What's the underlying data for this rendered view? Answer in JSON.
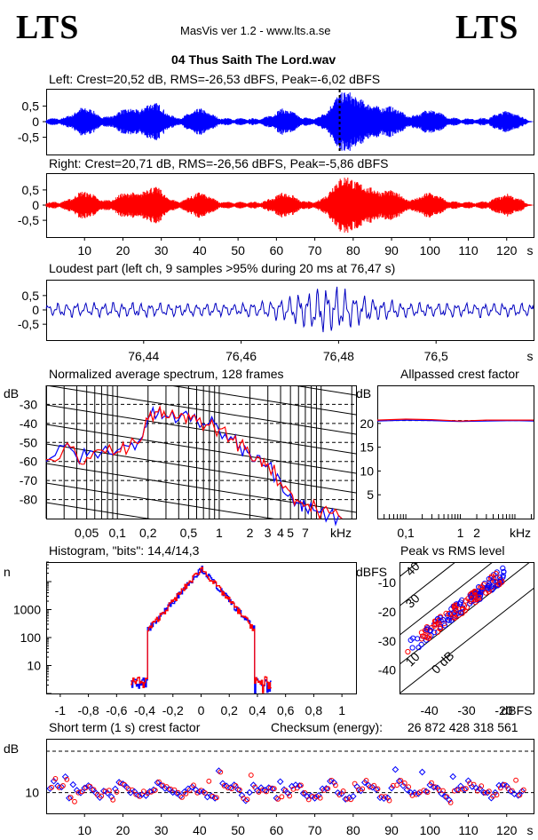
{
  "header": {
    "logo_left": "LTS",
    "logo_right": "LTS",
    "app_title": "MasVis ver 1.2 - www.lts.a.se",
    "file_name": "04 Thus Saith The Lord.wav"
  },
  "colors": {
    "left": "#0000ff",
    "right": "#ff0000",
    "axis": "#000000",
    "grid": "#000000"
  },
  "chart_data": [
    {
      "id": "left-waveform",
      "type": "line",
      "title": "Left: Crest=20,52 dB, RMS=-26,53 dBFS, Peak=-6,02 dBFS",
      "ylim": [
        -1,
        1
      ],
      "xlim": [
        0,
        127
      ],
      "yticks": [
        "0,5",
        "0",
        "-0,5"
      ],
      "marker_time_s": 76.47
    },
    {
      "id": "right-waveform",
      "type": "line",
      "title": "Right: Crest=20,71 dB, RMS=-26,56 dBFS, Peak=-5,86 dBFS",
      "ylim": [
        -1,
        1
      ],
      "xlim": [
        0,
        127
      ],
      "yticks": [
        "0,5",
        "0",
        "-0,5"
      ],
      "xticks": [
        10,
        20,
        30,
        40,
        50,
        60,
        70,
        80,
        90,
        100,
        110,
        120
      ],
      "xticklabels": [
        "10",
        "20",
        "30",
        "40",
        "50",
        "60",
        "70",
        "80",
        "90",
        "100",
        "110",
        "120"
      ],
      "xunit": "s"
    },
    {
      "id": "loudest-part",
      "type": "line",
      "title": "Loudest part (left  ch, 9 samples >95% during 20 ms at 76,47 s)",
      "ylim": [
        -1,
        1
      ],
      "xlim": [
        76.42,
        76.52
      ],
      "yticks": [
        "0,5",
        "0",
        "-0,5"
      ],
      "xticks": [
        76.44,
        76.46,
        76.48,
        76.5
      ],
      "xticklabels": [
        "76,44",
        "76,46",
        "76,48",
        "76,5"
      ],
      "xunit": "s"
    },
    {
      "id": "spectrum",
      "type": "line",
      "title": "Normalized average spectrum, 128 frames",
      "ylabel": "dB",
      "xscale": "log",
      "xlim": [
        0.02,
        22
      ],
      "ylim": [
        -90,
        -20
      ],
      "yticks": [
        "-30",
        "-40",
        "-50",
        "-60",
        "-70",
        "-80"
      ],
      "xticklabels": [
        "0,05",
        "0,1",
        "0,2",
        "0,5",
        "1",
        "2",
        "3",
        "4",
        "5",
        "7"
      ],
      "xunit": "kHz",
      "x": [
        0.02,
        0.03,
        0.04,
        0.05,
        0.07,
        0.1,
        0.13,
        0.17,
        0.2,
        0.25,
        0.3,
        0.4,
        0.5,
        0.6,
        0.8,
        1.0,
        1.3,
        1.6,
        2.0,
        2.5,
        3.0,
        4.0,
        5.0,
        6.0,
        7.0,
        9.0,
        12.0,
        16.0
      ],
      "series": [
        {
          "values": [
            -60,
            -52,
            -58,
            -57,
            -55,
            -54,
            -52,
            -48,
            -37,
            -35,
            -36,
            -38,
            -36,
            -38,
            -40,
            -44,
            -47,
            -52,
            -56,
            -57,
            -62,
            -70,
            -77,
            -82,
            -84,
            -86,
            -88,
            -90
          ]
        },
        {
          "values": [
            -59,
            -53,
            -57,
            -58,
            -54,
            -55,
            -53,
            -49,
            -38,
            -34,
            -37,
            -37,
            -35,
            -39,
            -41,
            -43,
            -48,
            -51,
            -57,
            -58,
            -61,
            -71,
            -76,
            -81,
            -83,
            -85,
            -87,
            -90
          ]
        }
      ]
    },
    {
      "id": "allpassed-crest",
      "type": "line",
      "title": "Allpassed crest factor",
      "ylabel": "dB",
      "xscale": "log",
      "xlim": [
        0.03,
        22
      ],
      "ylim": [
        0,
        28
      ],
      "yticks": [
        "20",
        "15",
        "10",
        "5"
      ],
      "xticklabels": [
        "0,1",
        "1",
        "2"
      ],
      "xunit": "kHz",
      "x": [
        0.03,
        0.1,
        0.3,
        1.0,
        3.0,
        10.0,
        22.0
      ],
      "series": [
        {
          "values": [
            20.5,
            20.7,
            20.6,
            20.4,
            20.5,
            20.6,
            20.5
          ]
        },
        {
          "values": [
            20.7,
            20.9,
            20.8,
            20.5,
            20.7,
            20.7,
            20.7
          ]
        }
      ]
    },
    {
      "id": "histogram",
      "type": "line",
      "title": "Histogram, \"bits\": 14,4/14,3",
      "ylabel": "n",
      "yscale": "log",
      "ylim": [
        1,
        50000
      ],
      "xlim": [
        -1.1,
        1.1
      ],
      "yticklabels": [
        "1000",
        "100",
        "10"
      ],
      "xticks": [
        -1,
        -0.8,
        -0.6,
        -0.4,
        -0.2,
        0,
        0.2,
        0.4,
        0.6,
        0.8,
        1
      ],
      "xticklabels": [
        "-1",
        "-0,8",
        "-0,6",
        "-0,4",
        "-0,2",
        "0",
        "0,2",
        "0,4",
        "0,6",
        "0,8",
        "1"
      ]
    },
    {
      "id": "peak-vs-rms",
      "type": "scatter",
      "title": "Peak vs RMS level",
      "ylabel": "dBFS",
      "xunit": "dBFS",
      "xlim": [
        -48,
        -12
      ],
      "ylim": [
        -48,
        -3
      ],
      "yticks": [
        "-10",
        "-20",
        "-30",
        "-40"
      ],
      "xticklabels": [
        "-40",
        "-30",
        "-20"
      ],
      "diagonal_labels": [
        "40",
        "30",
        "10",
        "0 dB"
      ]
    },
    {
      "id": "short-term-crest",
      "type": "scatter",
      "title": "Short term (1 s) crest factor",
      "ylabel": "dB",
      "ylim": [
        5,
        23
      ],
      "xlim": [
        0,
        127
      ],
      "yticks": [
        "10"
      ],
      "xticks": [
        10,
        20,
        30,
        40,
        50,
        60,
        70,
        80,
        90,
        100,
        110,
        120
      ],
      "xticklabels": [
        "10",
        "20",
        "30",
        "40",
        "50",
        "60",
        "70",
        "80",
        "90",
        "100",
        "110",
        "120"
      ],
      "xunit": "s",
      "checksum_label": "Checksum (energy):",
      "checksum_value": "26 872 428 318 561"
    }
  ]
}
